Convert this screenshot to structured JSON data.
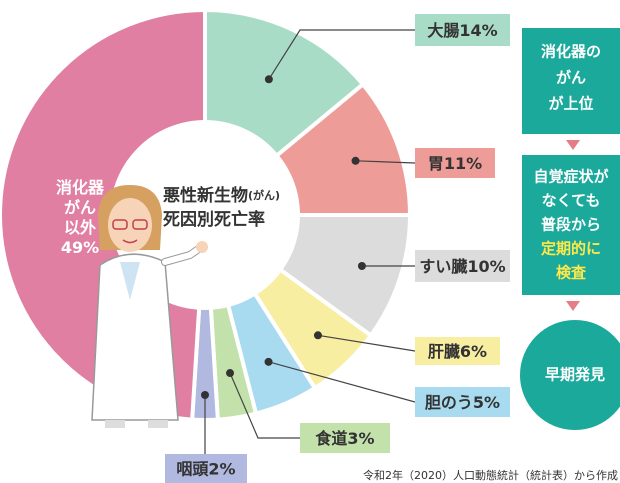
{
  "chart_data": {
    "type": "donut",
    "title": "悪性新生物",
    "title_note": "(がん)",
    "subtitle": "死因別死亡率",
    "categories": [
      "大腸",
      "胃",
      "すい臓",
      "肝臓",
      "胆のう",
      "食道",
      "咽頭",
      "消化器\nがん\n以外"
    ],
    "values": [
      14,
      11,
      10,
      6,
      5,
      3,
      2,
      49
    ],
    "value_labels": [
      "14%",
      "11%",
      "10%",
      "6%",
      "5%",
      "3%",
      "2%",
      "49%"
    ],
    "colors": [
      "#a9dcc7",
      "#ee9c98",
      "#dcdcdc",
      "#f8eea2",
      "#a8dbef",
      "#c3e2ab",
      "#b2b9e0",
      "#e07fa2"
    ],
    "source": "令和2年（2020）人口動態統計（統計表）から作成"
  },
  "flow": {
    "box1": [
      "消化器の",
      "がん",
      "が上位"
    ],
    "box2": [
      {
        "text": "自覚症状が",
        "highlight": false
      },
      {
        "text": "なくても",
        "highlight": false
      },
      {
        "text": "普段から",
        "highlight": false
      },
      {
        "text": "定期的に",
        "highlight": true
      },
      {
        "text": "検査",
        "highlight": true
      }
    ],
    "result": "早期発見"
  }
}
